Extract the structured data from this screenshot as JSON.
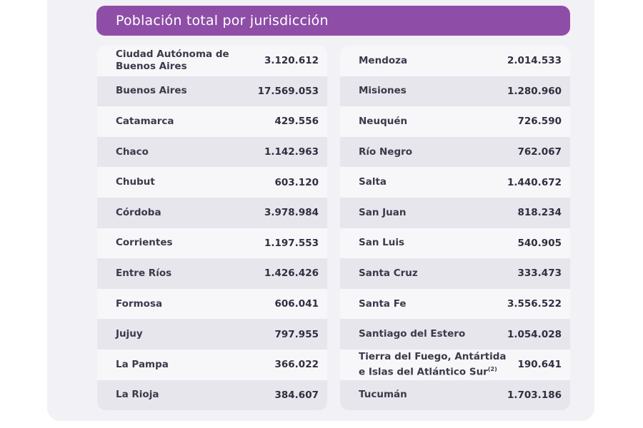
{
  "title": "Población total por jurisdicción",
  "colors": {
    "header_bg": "#8e4ea7",
    "row_light": "#f7f7fa",
    "row_dark": "#e6e6ec",
    "text": "#3a3a4a"
  },
  "left_table": {
    "rows": [
      {
        "name": "Ciudad Autónoma de Buenos Aires",
        "value": "3.120.612"
      },
      {
        "name": "Buenos Aires",
        "value": "17.569.053"
      },
      {
        "name": "Catamarca",
        "value": "429.556"
      },
      {
        "name": "Chaco",
        "value": "1.142.963"
      },
      {
        "name": "Chubut",
        "value": "603.120"
      },
      {
        "name": "Córdoba",
        "value": "3.978.984"
      },
      {
        "name": "Corrientes",
        "value": "1.197.553"
      },
      {
        "name": "Entre Ríos",
        "value": "1.426.426"
      },
      {
        "name": "Formosa",
        "value": "606.041"
      },
      {
        "name": "Jujuy",
        "value": "797.955"
      },
      {
        "name": "La Pampa",
        "value": "366.022"
      },
      {
        "name": "La Rioja",
        "value": "384.607"
      }
    ]
  },
  "right_table": {
    "rows": [
      {
        "name": "Mendoza",
        "value": "2.014.533"
      },
      {
        "name": "Misiones",
        "value": "1.280.960"
      },
      {
        "name": "Neuquén",
        "value": "726.590"
      },
      {
        "name": "Río Negro",
        "value": "762.067"
      },
      {
        "name": "Salta",
        "value": "1.440.672"
      },
      {
        "name": "San Juan",
        "value": "818.234"
      },
      {
        "name": "San Luis",
        "value": "540.905"
      },
      {
        "name": "Santa Cruz",
        "value": "333.473"
      },
      {
        "name": "Santa Fe",
        "value": "3.556.522"
      },
      {
        "name": "Santiago del Estero",
        "value": "1.054.028"
      },
      {
        "name": "Tierra del Fuego, Antártida e Islas del Atlántico Sur",
        "footnote": "(2)",
        "value": "190.641"
      },
      {
        "name": "Tucumán",
        "value": "1.703.186"
      }
    ]
  }
}
